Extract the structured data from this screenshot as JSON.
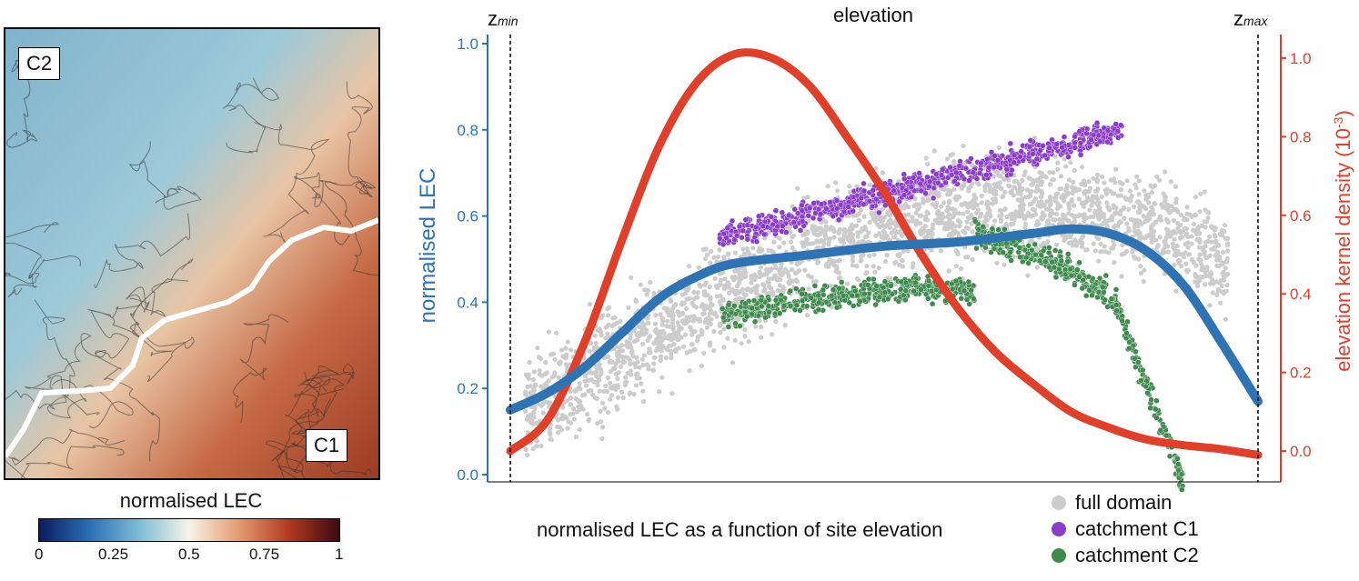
{
  "map": {
    "labels": {
      "c2": "C2",
      "c1": "C1"
    }
  },
  "colorbar": {
    "title": "normalised LEC",
    "ticks": [
      "0",
      "0.25",
      "0.5",
      "0.75",
      "1"
    ],
    "colors": [
      "#0d1b5e",
      "#2a6fb4",
      "#7fbcd8",
      "#f7f3e6",
      "#e39a6f",
      "#b03a1e",
      "#3b0a12"
    ]
  },
  "legend": [
    {
      "label": "full domain",
      "color": "#cccccc"
    },
    {
      "label": "catchment C1",
      "color": "#8b3dc9"
    },
    {
      "label": "catchment C2",
      "color": "#3f8a4d"
    }
  ],
  "caption": "normalised LEC as a function of site elevation",
  "chart_data": {
    "type": "scatter",
    "title": "elevation",
    "zmin_label": "z",
    "zmin_sub": "min",
    "zmax_label": "z",
    "zmax_sub": "max",
    "ylabel_left": "normalised LEC",
    "ylabel_right": "elevation kernel density (10",
    "ylabel_right_sup": "-3",
    "ylabel_right_end": ")",
    "left_color": "#2e74b5",
    "right_color": "#e0402a",
    "ylim_left": [
      0,
      1
    ],
    "yticks_left": [
      "0.0",
      "0.2",
      "0.4",
      "0.6",
      "0.8",
      "1.0"
    ],
    "ylim_right": [
      -0.06,
      1.06
    ],
    "yticks_right": [
      "0.0",
      "0.2",
      "0.4",
      "0.6",
      "0.8",
      "1.0"
    ],
    "xlim": [
      0,
      1
    ],
    "mean_lec_curve": {
      "name": "normalised LEC",
      "x": [
        0.0,
        0.05,
        0.1,
        0.15,
        0.2,
        0.25,
        0.3,
        0.4,
        0.5,
        0.6,
        0.7,
        0.75,
        0.8,
        0.85,
        0.9,
        0.95,
        1.0
      ],
      "y": [
        0.15,
        0.19,
        0.25,
        0.33,
        0.41,
        0.46,
        0.49,
        0.51,
        0.53,
        0.54,
        0.56,
        0.57,
        0.56,
        0.52,
        0.44,
        0.31,
        0.17
      ]
    },
    "density_curve": {
      "name": "elevation kernel density",
      "x": [
        0.0,
        0.05,
        0.1,
        0.15,
        0.2,
        0.25,
        0.3,
        0.35,
        0.4,
        0.45,
        0.5,
        0.55,
        0.6,
        0.65,
        0.7,
        0.75,
        0.8,
        0.85,
        0.9,
        0.95,
        1.0
      ],
      "y": [
        0.0,
        0.08,
        0.28,
        0.54,
        0.78,
        0.94,
        1.01,
        1.0,
        0.93,
        0.8,
        0.66,
        0.5,
        0.36,
        0.25,
        0.17,
        0.1,
        0.06,
        0.03,
        0.015,
        0.005,
        -0.01
      ]
    },
    "series": [
      {
        "name": "full domain",
        "color": "#cccccc",
        "regions": [
          {
            "x": [
              0.0,
              0.98
            ],
            "center": [
              0.12,
              0.28,
              0.42,
              0.55,
              0.61,
              0.62,
              0.58,
              0.45
            ],
            "spread": 0.14
          }
        ],
        "n": 2600
      },
      {
        "name": "catchment C1",
        "color": "#8b3dc9",
        "x_range": [
          0.28,
          0.82
        ],
        "center_start": 0.56,
        "center_end": 0.78,
        "spread": 0.05,
        "n": 700
      },
      {
        "name": "catchment C2",
        "color": "#3f8a4d",
        "x_range": [
          0.28,
          0.9
        ],
        "center_start": 0.42,
        "center_end": 0.3,
        "spread": 0.05,
        "n": 900
      }
    ]
  }
}
